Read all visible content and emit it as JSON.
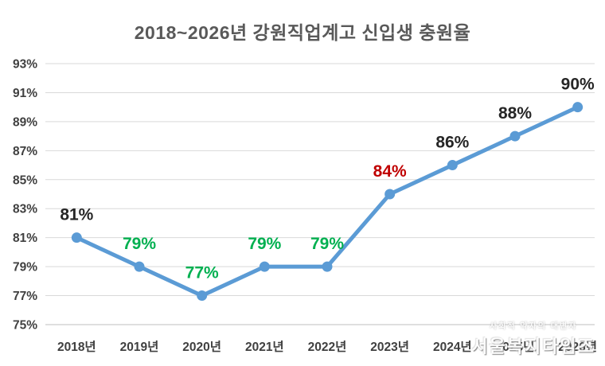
{
  "title": "2018~2026년 강원직업계고 신입생 충원율",
  "watermark": {
    "line1": "사회적 약자의 대변자",
    "line2": "서울복지타임즈"
  },
  "chart_data": {
    "type": "line",
    "title": "2018~2026년 강원직업계고 신입생 충원율",
    "categories": [
      "2018년",
      "2019년",
      "2020년",
      "2021년",
      "2022년",
      "2023년",
      "2024년",
      "2025년",
      "2026년"
    ],
    "values": [
      81,
      79,
      77,
      79,
      79,
      84,
      86,
      88,
      90
    ],
    "data_labels": [
      "81%",
      "79%",
      "77%",
      "79%",
      "79%",
      "84%",
      "86%",
      "88%",
      "90%"
    ],
    "unit": "%",
    "xlabel": "",
    "ylabel": "",
    "ylim": [
      75,
      93
    ],
    "yticks": [
      93,
      91,
      89,
      87,
      85,
      83,
      81,
      79,
      77,
      75
    ],
    "ytick_labels": [
      "93%",
      "91%",
      "89%",
      "87%",
      "85%",
      "83%",
      "81%",
      "79%",
      "77%",
      "75%"
    ],
    "grid": true,
    "legend_position": "none",
    "colors": {
      "line": "#5B9BD5",
      "marker": "#5B9BD5",
      "gridline": "#D9D9D9",
      "axis_line": "#BFBFBF",
      "title_text": "#595959",
      "tick_text": "#404040",
      "label_black": "#262626",
      "label_green": "#00B050",
      "label_red": "#C00000"
    },
    "label_colors": [
      "#262626",
      "#00B050",
      "#00B050",
      "#00B050",
      "#00B050",
      "#C00000",
      "#262626",
      "#262626",
      "#262626"
    ]
  }
}
